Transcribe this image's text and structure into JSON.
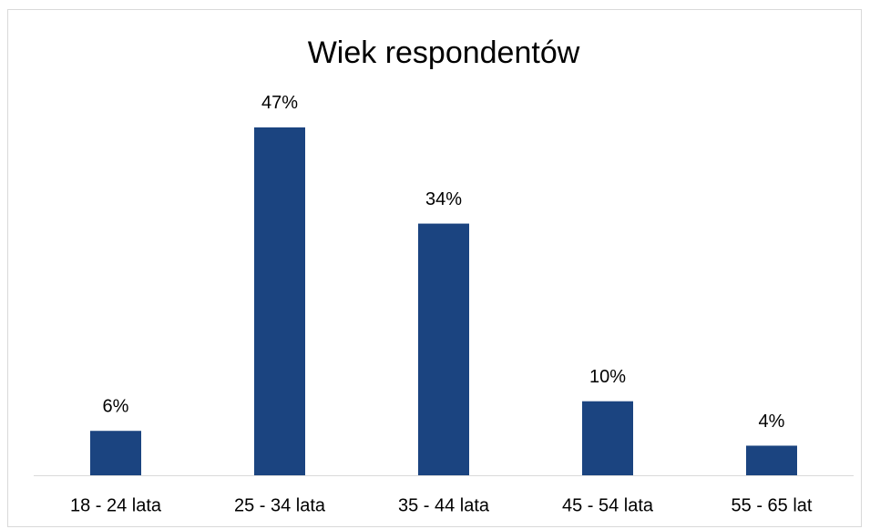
{
  "chart_data": {
    "type": "bar",
    "title": "Wiek respondentów",
    "categories": [
      "18 - 24 lata",
      "25 - 34 lata",
      "35 - 44 lata",
      "45 - 54 lata",
      "55 - 65 lat"
    ],
    "values": [
      6,
      47,
      34,
      10,
      4
    ],
    "value_labels": [
      "6%",
      "47%",
      "34%",
      "10%",
      "4%"
    ],
    "color": "#1b4480"
  }
}
